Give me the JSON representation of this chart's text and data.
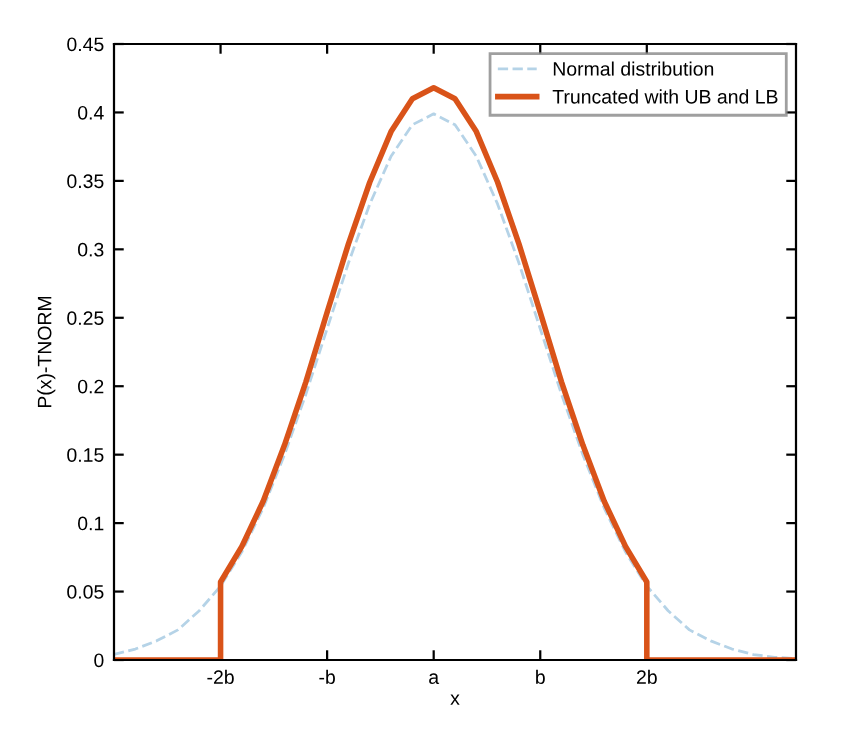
{
  "chart_data": {
    "type": "line",
    "xlabel": "x",
    "ylabel": "P(x)-TNORM",
    "xlim": [
      -3,
      3.4
    ],
    "ylim": [
      0,
      0.45
    ],
    "xticks": [
      {
        "value": -2,
        "label": "-2b"
      },
      {
        "value": -1,
        "label": "-b"
      },
      {
        "value": 0,
        "label": "a"
      },
      {
        "value": 1,
        "label": "b"
      },
      {
        "value": 2,
        "label": "2b"
      }
    ],
    "yticks": [
      0,
      0.05,
      0.1,
      0.15,
      0.2,
      0.25,
      0.3,
      0.35,
      0.4,
      0.45
    ],
    "grid": false,
    "legend": "top right",
    "series": [
      {
        "name": "Normal distribution",
        "color": "#b5d3e7",
        "line_style": "dashed",
        "x": [
          -3,
          -2.8,
          -2.6,
          -2.4,
          -2.2,
          -2,
          -1.8,
          -1.6,
          -1.4,
          -1.2,
          -1,
          -0.8,
          -0.6,
          -0.4,
          -0.2,
          0,
          0.2,
          0.4,
          0.6,
          0.8,
          1,
          1.2,
          1.4,
          1.6,
          1.8,
          2,
          2.2,
          2.4,
          2.6,
          2.8,
          3,
          3.2,
          3.4
        ],
        "values": [
          0.004,
          0.008,
          0.014,
          0.022,
          0.036,
          0.054,
          0.079,
          0.111,
          0.15,
          0.194,
          0.242,
          0.29,
          0.333,
          0.368,
          0.391,
          0.399,
          0.391,
          0.368,
          0.333,
          0.29,
          0.242,
          0.194,
          0.15,
          0.111,
          0.079,
          0.054,
          0.036,
          0.022,
          0.014,
          0.008,
          0.004,
          0.002,
          0.001
        ]
      },
      {
        "name": "Truncated with UB and LB",
        "color": "#d95319",
        "line_style": "solid",
        "x": [
          -3,
          -2,
          -2,
          -1.8,
          -1.6,
          -1.4,
          -1.2,
          -1,
          -0.8,
          -0.6,
          -0.4,
          -0.2,
          0,
          0.2,
          0.4,
          0.6,
          0.8,
          1,
          1.2,
          1.4,
          1.6,
          1.8,
          2,
          2,
          3.4
        ],
        "values": [
          0,
          0,
          0.057,
          0.083,
          0.116,
          0.157,
          0.203,
          0.254,
          0.304,
          0.349,
          0.386,
          0.41,
          0.418,
          0.41,
          0.386,
          0.349,
          0.304,
          0.254,
          0.203,
          0.157,
          0.116,
          0.083,
          0.057,
          0,
          0
        ]
      }
    ]
  }
}
